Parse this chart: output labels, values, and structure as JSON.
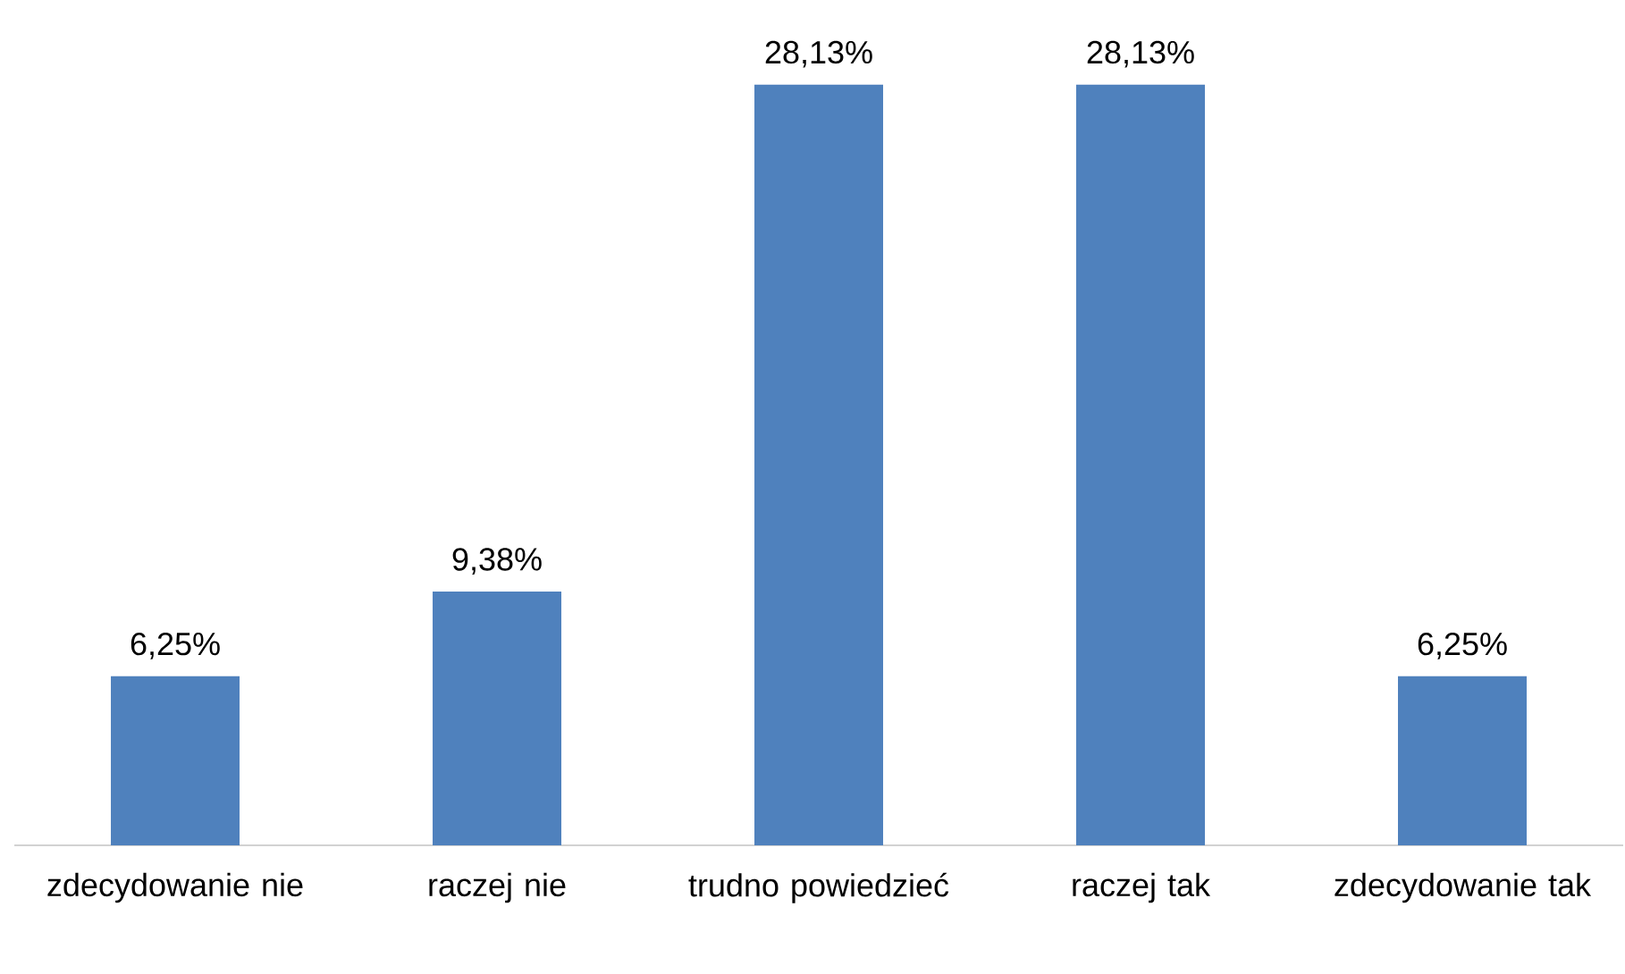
{
  "chart_data": {
    "type": "bar",
    "categories": [
      "zdecydowanie nie",
      "raczej nie",
      "trudno powiedzieć",
      "raczej tak",
      "zdecydowanie tak"
    ],
    "values": [
      6.25,
      9.38,
      28.13,
      28.13,
      6.25
    ],
    "value_labels": [
      "6,25%",
      "9,38%",
      "28,13%",
      "28,13%",
      "6,25%"
    ],
    "color": "#4f81bd",
    "tick_labels": "x"
  }
}
